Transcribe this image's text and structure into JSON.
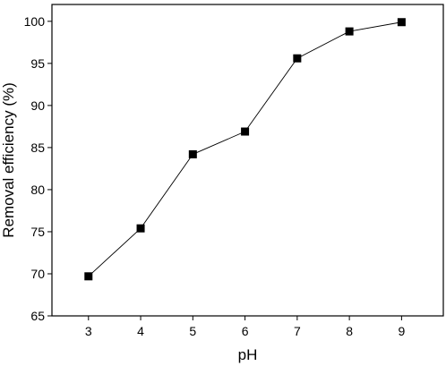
{
  "chart_data": {
    "type": "line",
    "title": "",
    "xlabel": "pH",
    "ylabel": "Removal efficiency (%)",
    "xlim": [
      2.3,
      9.8
    ],
    "ylim": [
      65,
      102
    ],
    "xticks": [
      3,
      4,
      5,
      6,
      7,
      8,
      9
    ],
    "yticks": [
      65,
      70,
      75,
      80,
      85,
      90,
      95,
      100
    ],
    "grid": false,
    "legend": "none",
    "marker": "square",
    "line_color": "#000000",
    "marker_color": "#000000",
    "series": [
      {
        "x": [
          3,
          4,
          5,
          6,
          7,
          8,
          9
        ],
        "values": [
          69.7,
          75.4,
          84.2,
          86.9,
          95.6,
          98.8,
          99.9
        ]
      }
    ]
  }
}
